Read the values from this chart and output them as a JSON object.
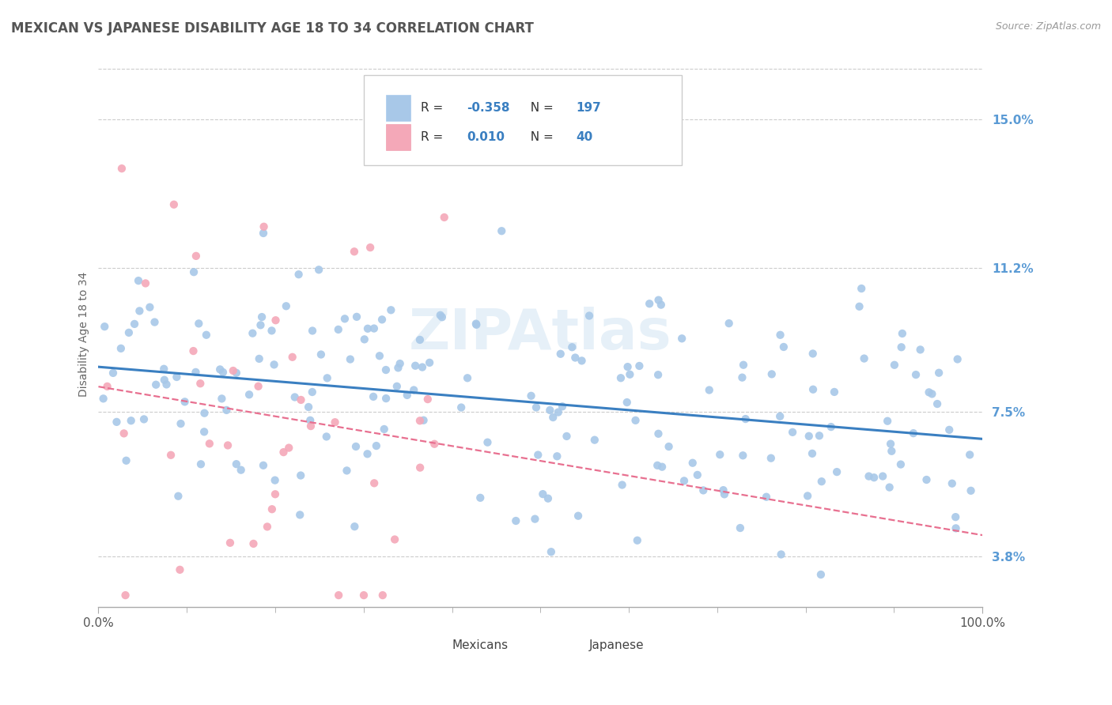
{
  "title": "MEXICAN VS JAPANESE DISABILITY AGE 18 TO 34 CORRELATION CHART",
  "source": "Source: ZipAtlas.com",
  "ylabel": "Disability Age 18 to 34",
  "xlim": [
    0.0,
    100.0
  ],
  "ylim": [
    2.5,
    16.5
  ],
  "yticks": [
    3.8,
    7.5,
    11.2,
    15.0
  ],
  "xticks": [
    0.0,
    100.0
  ],
  "mexican_color": "#a8c8e8",
  "japanese_color": "#f4a8b8",
  "trend_mexican_color": "#3a7fc1",
  "trend_japanese_color": "#e87090",
  "R_mexican": -0.358,
  "N_mexican": 197,
  "R_japanese": 0.01,
  "N_japanese": 40,
  "background_color": "#ffffff",
  "grid_color": "#cccccc",
  "watermark": "ZIPAtlas",
  "title_color": "#555555",
  "axis_label_color": "#5b9bd5",
  "legend_value_color": "#3a7fc1",
  "seed_mexican": 42,
  "seed_japanese": 7
}
